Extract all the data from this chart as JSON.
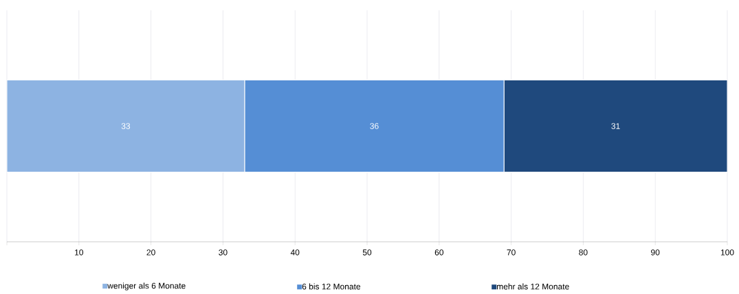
{
  "chart_data": {
    "type": "bar",
    "orientation": "horizontal",
    "stacked": true,
    "categories": [
      null
    ],
    "series": [
      {
        "name": "weniger als 6 Monate",
        "color": "#8db3e2",
        "values": [
          33
        ]
      },
      {
        "name": "6 bis 12 Monate",
        "color": "#558ed5",
        "values": [
          36
        ]
      },
      {
        "name": "mehr als 12 Monate",
        "color": "#1f497d",
        "values": [
          31
        ]
      }
    ],
    "xlim": [
      0,
      100
    ],
    "xticks": [
      {
        "value": 0,
        "label": null
      },
      10,
      20,
      30,
      40,
      50,
      60,
      70,
      80,
      90,
      100
    ],
    "data_labels": true,
    "grid": "x",
    "legend": "bottom"
  }
}
